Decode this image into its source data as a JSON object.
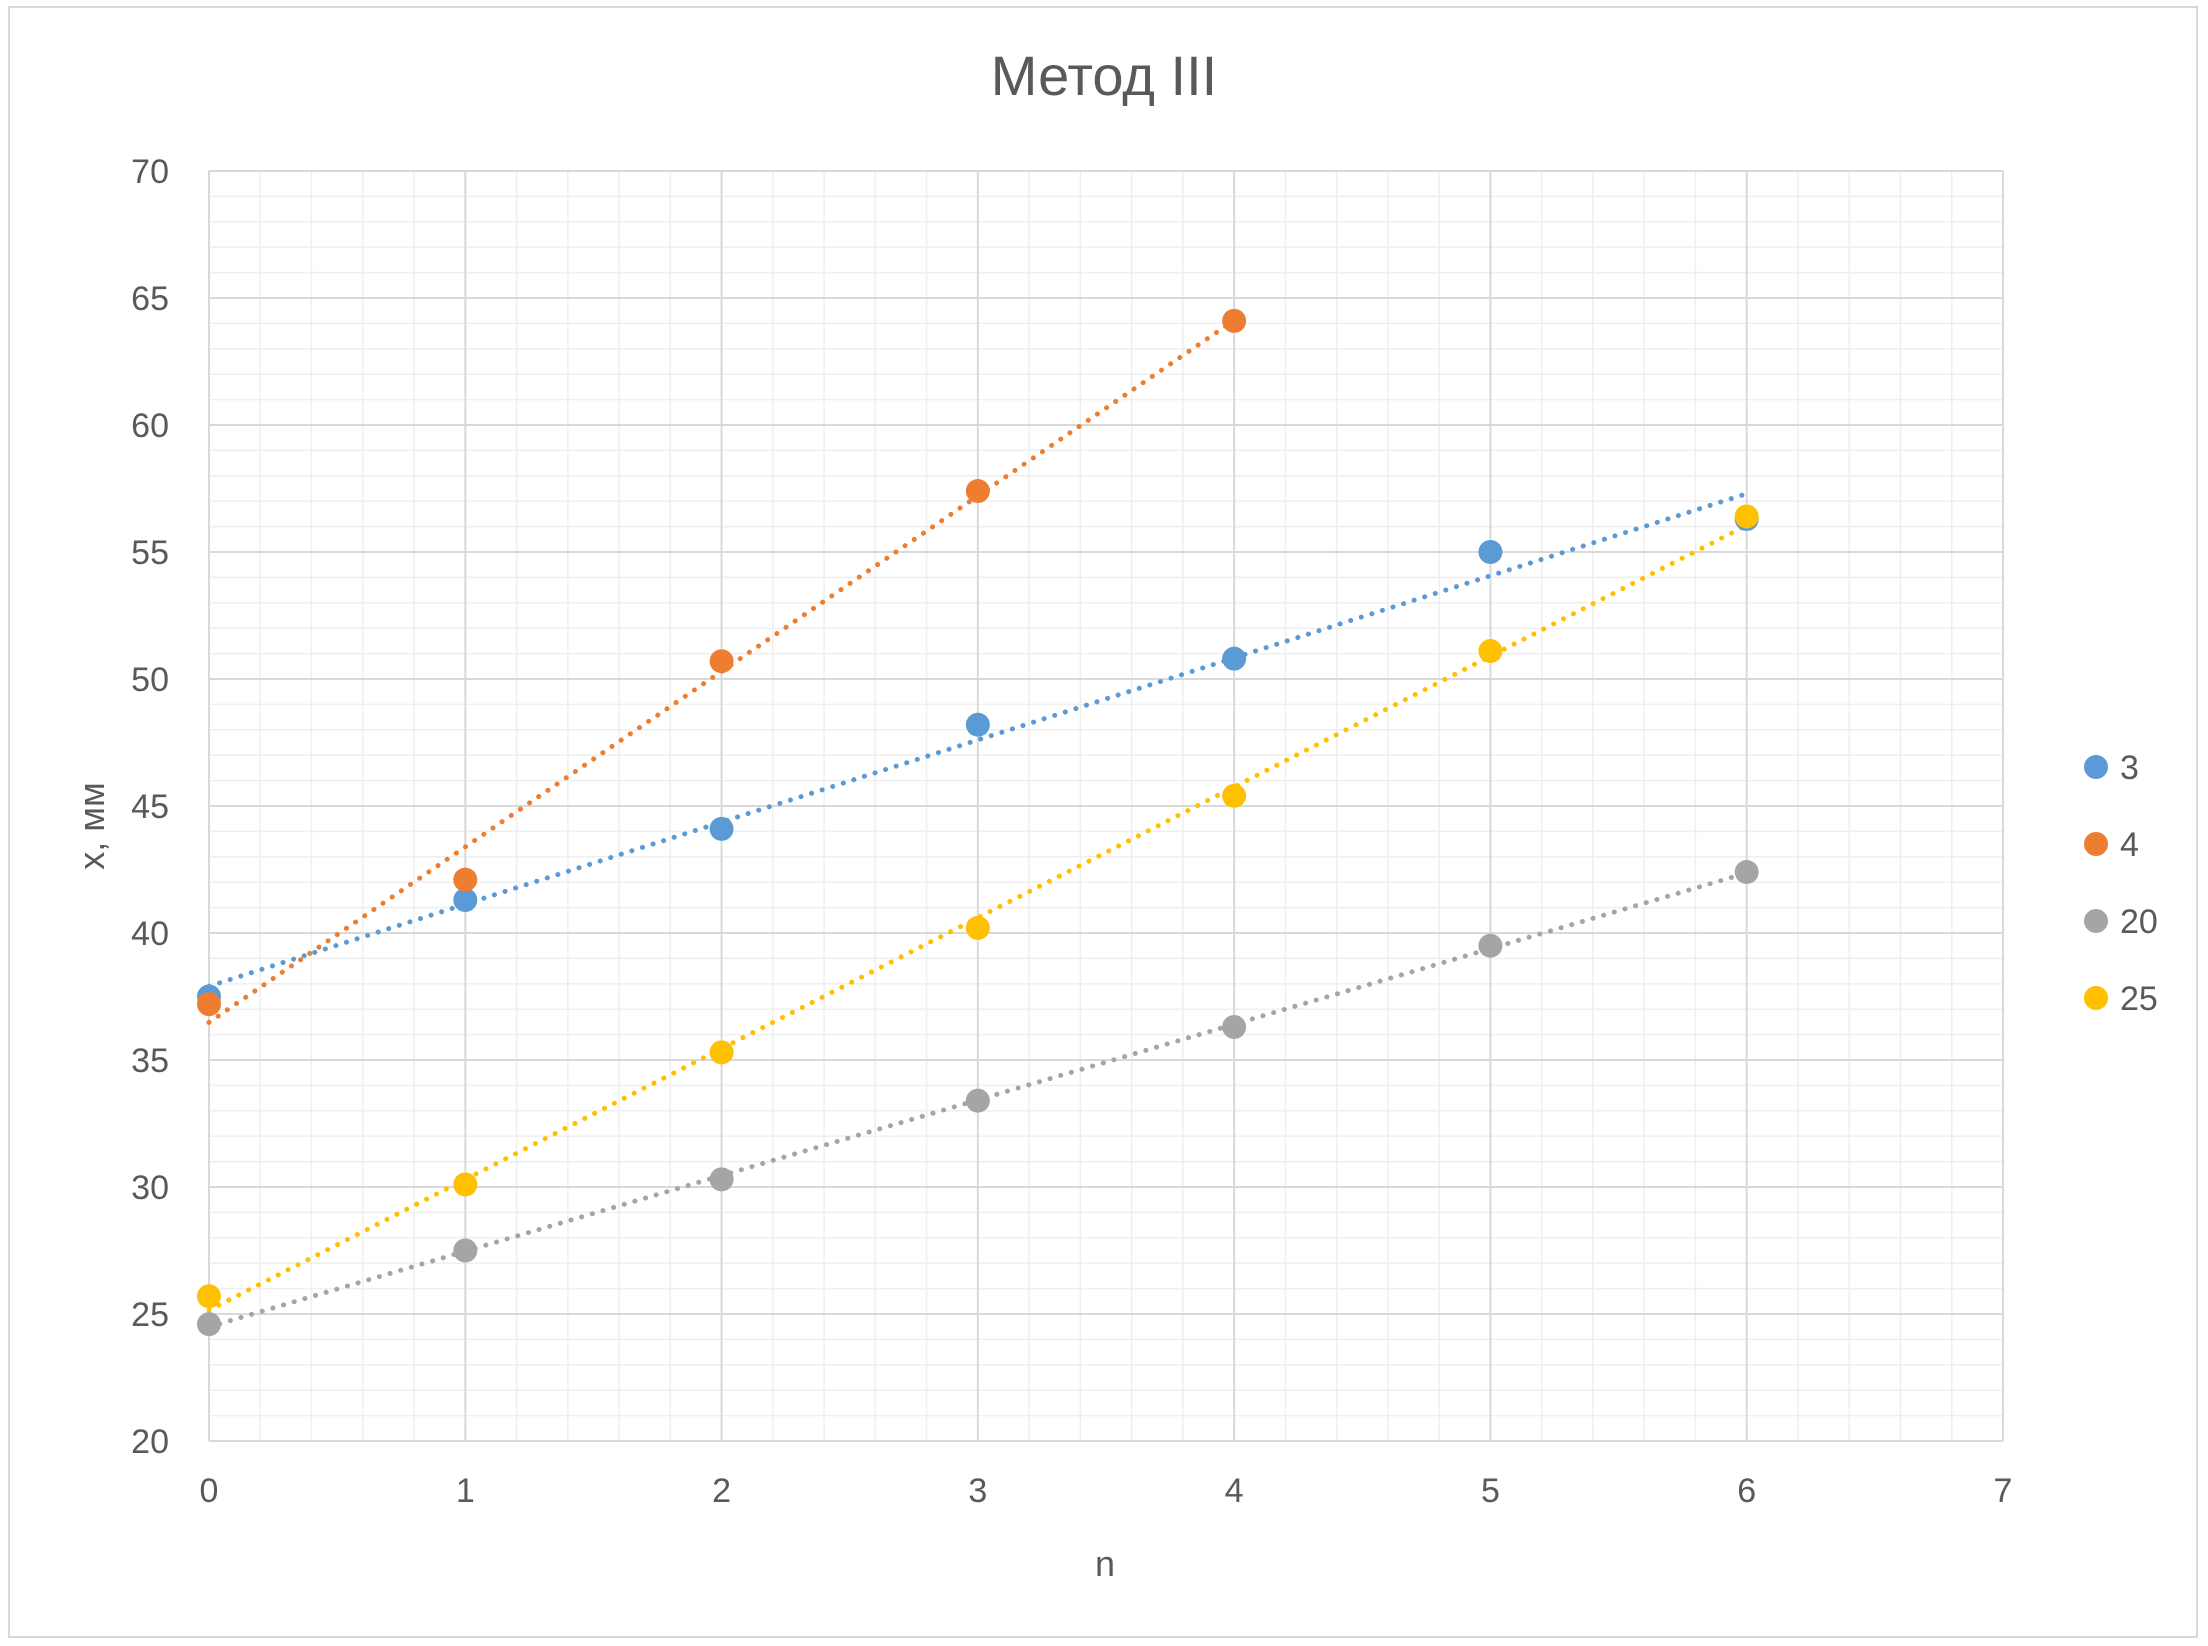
{
  "chart_data": {
    "type": "scatter",
    "title": "Метод III",
    "xlabel": "n",
    "ylabel": "x, мм",
    "xlim": [
      0,
      7
    ],
    "ylim": [
      20,
      70
    ],
    "x_ticks": [
      "0",
      "1",
      "2",
      "3",
      "4",
      "5",
      "6",
      "7"
    ],
    "y_ticks": [
      "20",
      "25",
      "30",
      "35",
      "40",
      "45",
      "50",
      "55",
      "60",
      "65",
      "70"
    ],
    "x_major_step": 1,
    "x_minor_step": 0.2,
    "y_major_step": 5,
    "y_minor_step": 1,
    "grid": true,
    "legend_position": "right",
    "trendlines": "linear, dotted",
    "series": [
      {
        "name": "3",
        "color": "#5B9BD5",
        "x": [
          0,
          1,
          2,
          3,
          4,
          5,
          6
        ],
        "y": [
          37.5,
          41.3,
          44.1,
          48.2,
          50.8,
          55.0,
          56.3
        ]
      },
      {
        "name": "4",
        "color": "#ED7D31",
        "x": [
          0,
          1,
          2,
          3,
          4
        ],
        "y": [
          37.2,
          42.1,
          50.7,
          57.4,
          64.1
        ]
      },
      {
        "name": "20",
        "color": "#A5A5A5",
        "x": [
          0,
          1,
          2,
          3,
          4,
          5,
          6
        ],
        "y": [
          24.6,
          27.5,
          30.3,
          33.4,
          36.3,
          39.5,
          42.4
        ]
      },
      {
        "name": "25",
        "color": "#FFC000",
        "x": [
          0,
          1,
          2,
          3,
          4,
          5,
          6
        ],
        "y": [
          25.7,
          30.1,
          35.3,
          40.2,
          45.4,
          51.1,
          56.4
        ]
      }
    ]
  }
}
